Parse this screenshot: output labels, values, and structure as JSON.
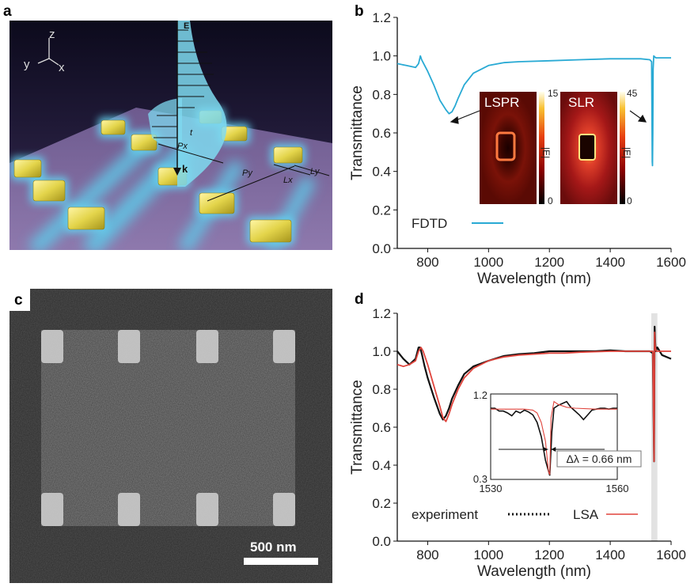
{
  "panels": {
    "a": {
      "letter": "a",
      "axes_labels": {
        "z": "z",
        "y": "y",
        "x": "x"
      },
      "vector_labels": {
        "e": "E",
        "k": "k"
      },
      "dimension_labels": {
        "t": "t",
        "px": "Px",
        "py": "Py",
        "lx": "Lx",
        "ly": "Ly"
      }
    },
    "b": {
      "letter": "b",
      "legend": "FDTD",
      "inset_lspr": {
        "label": "LSPR",
        "cbar_max": "15",
        "cbar_min": "0",
        "cbar_label": "|E|"
      },
      "inset_slr": {
        "label": "SLR",
        "cbar_max": "45",
        "cbar_min": "0",
        "cbar_label": "|E|"
      }
    },
    "c": {
      "letter": "c",
      "scale_bar": "500 nm"
    },
    "d": {
      "letter": "d",
      "legend_experiment": "experiment",
      "legend_lsa": "LSA",
      "inset": {
        "y_ticks": [
          "1.2",
          "0.3"
        ],
        "x_ticks": [
          "1530",
          "1560"
        ],
        "annotation": "Δλ = 0.66 nm"
      }
    }
  },
  "chart_data": [
    {
      "panel": "b",
      "type": "line",
      "xlabel": "Wavelength (nm)",
      "ylabel": "Transmittance",
      "xlim": [
        700,
        1600
      ],
      "ylim": [
        0,
        1.2
      ],
      "xticks": [
        800,
        1000,
        1200,
        1400,
        1600
      ],
      "yticks": [
        0,
        0.2,
        0.4,
        0.6,
        0.8,
        1.0,
        1.2
      ],
      "color": "#29aad4",
      "series": [
        {
          "name": "FDTD",
          "x": [
            700,
            730,
            760,
            770,
            776,
            780,
            790,
            800,
            820,
            840,
            860,
            870,
            880,
            890,
            900,
            920,
            950,
            1000,
            1050,
            1100,
            1200,
            1300,
            1400,
            1500,
            1530,
            1536,
            1538,
            1539,
            1540,
            1541,
            1543,
            1546,
            1550,
            1570,
            1600
          ],
          "y": [
            0.96,
            0.95,
            0.94,
            0.96,
            1.0,
            0.98,
            0.95,
            0.92,
            0.85,
            0.77,
            0.72,
            0.7,
            0.71,
            0.74,
            0.78,
            0.85,
            0.91,
            0.95,
            0.965,
            0.97,
            0.975,
            0.98,
            0.985,
            0.985,
            0.98,
            0.97,
            0.45,
            0.43,
            0.6,
            0.93,
            1.0,
            0.995,
            0.99,
            0.99,
            0.99
          ]
        }
      ]
    },
    {
      "panel": "d",
      "type": "line",
      "xlabel": "Wavelength (nm)",
      "ylabel": "Transmittance",
      "xlim": [
        700,
        1600
      ],
      "ylim": [
        0,
        1.2
      ],
      "xticks": [
        800,
        1000,
        1200,
        1400,
        1600
      ],
      "yticks": [
        0,
        0.2,
        0.4,
        0.6,
        0.8,
        1.0,
        1.2
      ],
      "highlight_band": [
        1535,
        1555
      ],
      "series": [
        {
          "name": "experiment",
          "color": "#111111",
          "x": [
            700,
            720,
            740,
            760,
            770,
            775,
            780,
            790,
            800,
            820,
            840,
            850,
            860,
            870,
            880,
            900,
            920,
            950,
            1000,
            1050,
            1100,
            1150,
            1200,
            1250,
            1300,
            1350,
            1400,
            1450,
            1500,
            1530,
            1540,
            1544,
            1546,
            1548,
            1550,
            1555,
            1570,
            1600
          ],
          "y": [
            1.0,
            0.96,
            0.93,
            0.96,
            1.02,
            1.02,
            0.99,
            0.92,
            0.86,
            0.76,
            0.67,
            0.64,
            0.66,
            0.7,
            0.75,
            0.82,
            0.88,
            0.92,
            0.95,
            0.975,
            0.985,
            0.99,
            1.0,
            1.0,
            1.0,
            1.0,
            1.005,
            1.0,
            1.0,
            1.0,
            0.99,
            0.42,
            1.13,
            1.04,
            1.0,
            1.02,
            0.98,
            0.96
          ]
        },
        {
          "name": "LSA",
          "color": "#e0443c",
          "x": [
            700,
            720,
            740,
            760,
            770,
            778,
            785,
            800,
            820,
            840,
            850,
            860,
            870,
            880,
            900,
            920,
            950,
            1000,
            1050,
            1100,
            1150,
            1200,
            1250,
            1300,
            1400,
            1500,
            1540,
            1544,
            1546,
            1548,
            1552,
            1600
          ],
          "y": [
            0.93,
            0.92,
            0.93,
            0.95,
            1.0,
            1.02,
            1.0,
            0.93,
            0.82,
            0.71,
            0.65,
            0.63,
            0.67,
            0.72,
            0.8,
            0.86,
            0.91,
            0.95,
            0.97,
            0.98,
            0.985,
            0.99,
            0.99,
            0.995,
            1.0,
            1.0,
            1.0,
            0.42,
            1.1,
            1.02,
            1.0,
            1.0
          ]
        }
      ]
    },
    {
      "panel": "d-inset",
      "type": "line",
      "xlim": [
        1530,
        1560
      ],
      "ylim": [
        0.3,
        1.2
      ],
      "series": [
        {
          "name": "experiment",
          "color": "#111111",
          "x": [
            1530,
            1531,
            1532,
            1533,
            1534,
            1535,
            1536,
            1537,
            1538,
            1539,
            1540,
            1541,
            1542,
            1543,
            1544,
            1544.5,
            1545,
            1546,
            1547,
            1548,
            1549,
            1550,
            1551,
            1552,
            1553,
            1554,
            1555,
            1556,
            1557,
            1558,
            1559,
            1560
          ],
          "y": [
            1.05,
            1.05,
            1.02,
            1.02,
            1.0,
            0.97,
            1.02,
            1.0,
            1.03,
            1.01,
            0.98,
            0.9,
            0.75,
            0.5,
            0.34,
            0.8,
            1.05,
            1.08,
            1.1,
            1.12,
            1.06,
            1.02,
            0.98,
            0.93,
            0.98,
            1.03,
            1.04,
            1.05,
            1.05,
            1.04,
            1.05,
            1.05
          ]
        },
        {
          "name": "LSA",
          "color": "#e0443c",
          "x": [
            1530,
            1535,
            1538,
            1540,
            1541,
            1542,
            1543,
            1543.7,
            1544,
            1544.3,
            1545,
            1546,
            1548,
            1550,
            1555,
            1560
          ],
          "y": [
            1.04,
            1.04,
            1.04,
            1.03,
            1.0,
            0.9,
            0.7,
            0.38,
            0.35,
            0.95,
            1.12,
            1.09,
            1.06,
            1.05,
            1.04,
            1.04
          ]
        }
      ]
    }
  ]
}
